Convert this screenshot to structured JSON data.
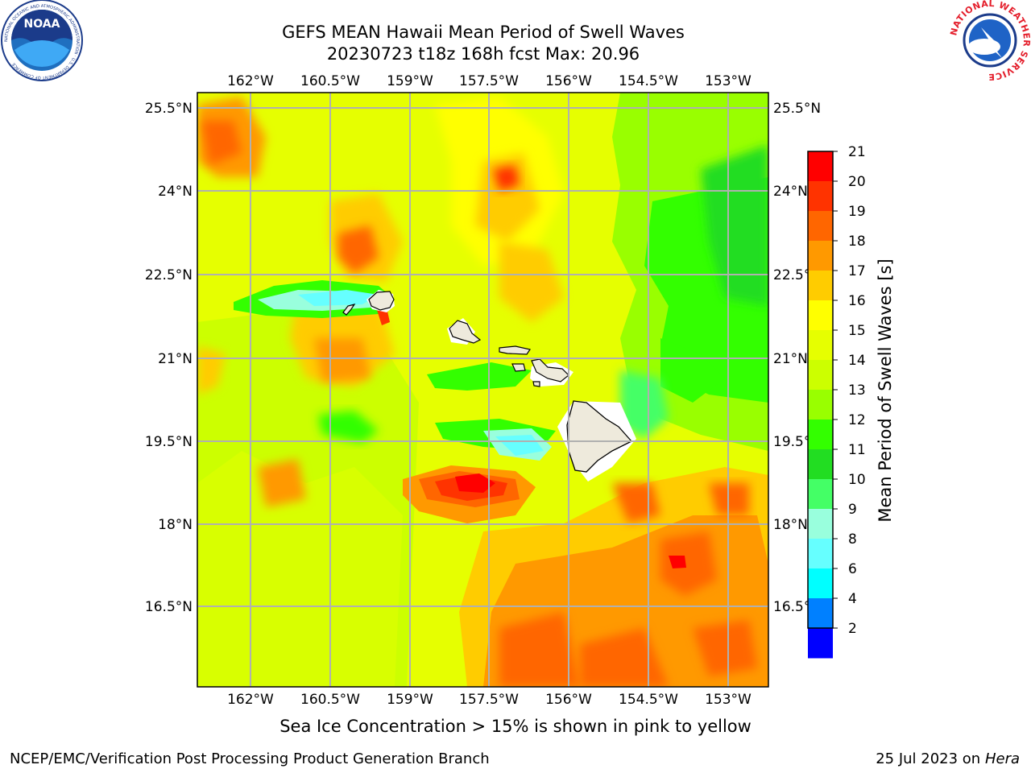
{
  "header": {
    "title_line1": "GEFS MEAN Hawaii Mean Period of Swell Waves",
    "title_line2": "20230723 t18z 168h fcst   Max: 20.96"
  },
  "map": {
    "lon_labels": [
      "162°W",
      "160.5°W",
      "159°W",
      "157.5°W",
      "156°W",
      "154.5°W",
      "153°W"
    ],
    "lat_labels": [
      "25.5°N",
      "24°N",
      "22.5°N",
      "21°N",
      "19.5°N",
      "18°N",
      "16.5°N"
    ],
    "grid_color": "#b0b0b0",
    "land_color": "#eeeadc"
  },
  "colorbar": {
    "label": "Mean Period of Swell Waves [s]",
    "ticks": [
      "21",
      "20",
      "19",
      "18",
      "17",
      "16",
      "15",
      "14",
      "13",
      "12",
      "11",
      "10",
      "9",
      "8",
      "6",
      "4",
      "2"
    ],
    "colors": [
      "#ff0000",
      "#ff3300",
      "#ff6600",
      "#ff9900",
      "#ffcc00",
      "#ffff00",
      "#e6ff00",
      "#ccff00",
      "#99ff00",
      "#33ff00",
      "#22dd22",
      "#44ff66",
      "#99ffdd",
      "#66ffff",
      "#00ffff",
      "#0080ff",
      "#0000ff"
    ]
  },
  "caption": "Sea Ice Concentration > 15% is shown in pink to yellow",
  "footer": {
    "left": "NCEP/EMC/Verification Post Processing Product Generation Branch",
    "right_date": "25 Jul 2023 on ",
    "right_machine": "Hera"
  },
  "logos": {
    "noaa_text": "NOAA",
    "noaa_ring": "NATIONAL OCEANIC AND ATMOSPHERIC ADMINISTRATION · U.S. DEPARTMENT OF COMMERCE",
    "nws_ring": "NATIONAL WEATHER SERVICE"
  }
}
